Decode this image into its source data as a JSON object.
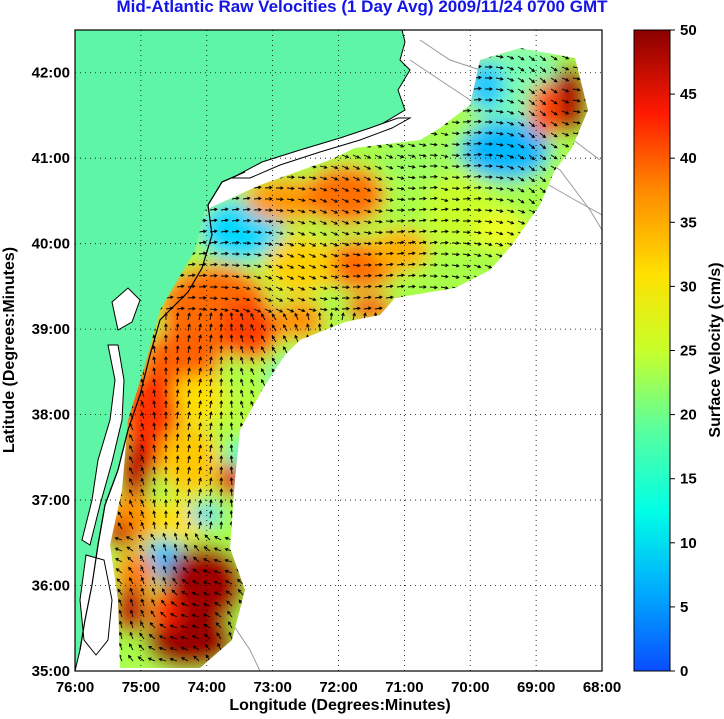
{
  "title": "Mid-Atlantic Raw Velocities (1 Day Avg) 2009/11/24 0700 GMT",
  "axes": {
    "xlabel": "Longitude (Degrees:Minutes)",
    "ylabel": "Latitude (Degrees:Minutes)",
    "x_ticks": [
      "76:00",
      "75:00",
      "74:00",
      "73:00",
      "72:00",
      "71:00",
      "70:00",
      "69:00",
      "68:00"
    ],
    "y_ticks": [
      "42:00",
      "41:00",
      "40:00",
      "39:00",
      "38:00",
      "37:00",
      "36:00",
      "35:00"
    ],
    "lon_range": [
      -76,
      -68
    ],
    "lat_range": [
      35,
      42.5
    ],
    "grid": "dotted"
  },
  "colorbar": {
    "label": "Surface Velocity (cm/s)",
    "ticks": [
      "50",
      "45",
      "40",
      "35",
      "30",
      "25",
      "20",
      "15",
      "10",
      "5",
      "0"
    ],
    "range": [
      0,
      50
    ],
    "colormap": "jet"
  },
  "colors": {
    "land": "#5ef5a6",
    "title": "#1414e6",
    "arrows": "#000000",
    "coastline": "#000000",
    "bathymetry": "#9a9a9a"
  }
}
